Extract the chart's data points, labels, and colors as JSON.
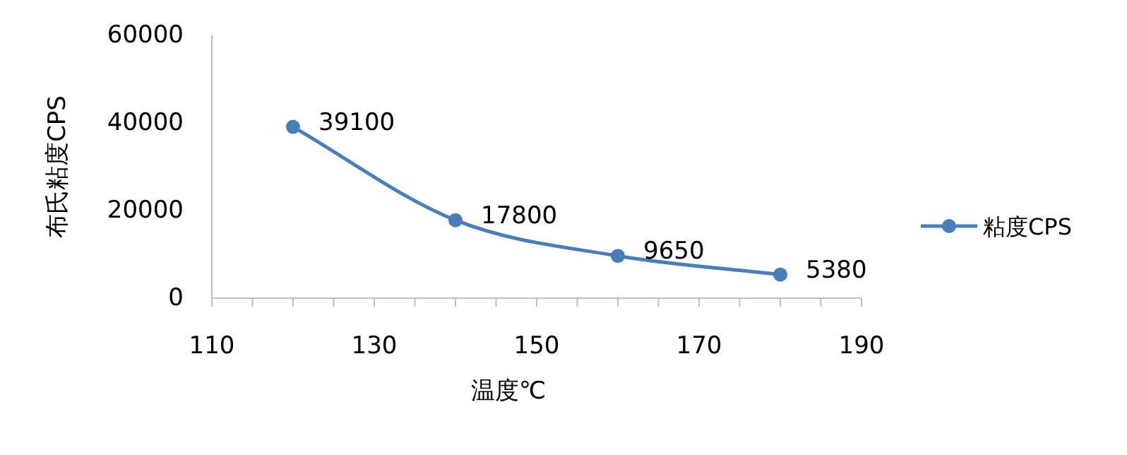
{
  "chart_data": {
    "type": "line",
    "xlabel": "温度℃",
    "ylabel": "布氏粘度CPS",
    "x": [
      120,
      140,
      160,
      180
    ],
    "series": [
      {
        "name": "粘度CPS",
        "color": "#4a7ebb",
        "values": [
          39100,
          17800,
          9650,
          5380
        ]
      }
    ],
    "xlim": [
      110,
      190
    ],
    "xticks": [
      110,
      {
        "value": 115,
        "label": null
      },
      {
        "value": 120,
        "label": null
      },
      {
        "value": 125,
        "label": null
      },
      130,
      {
        "value": 135,
        "label": null
      },
      {
        "value": 140,
        "label": null
      },
      {
        "value": 145,
        "label": null
      },
      150,
      {
        "value": 155,
        "label": null
      },
      {
        "value": 160,
        "label": null
      },
      {
        "value": 165,
        "label": null
      },
      170,
      {
        "value": 175,
        "label": null
      },
      {
        "value": 180,
        "label": null
      },
      {
        "value": 185,
        "label": null
      },
      190
    ],
    "ylim": [
      0,
      60000
    ],
    "yticks": [
      0,
      20000,
      40000,
      60000
    ],
    "data_labels": true,
    "legend": "right",
    "marker": "circle",
    "grid": false,
    "line_style": "solid"
  }
}
